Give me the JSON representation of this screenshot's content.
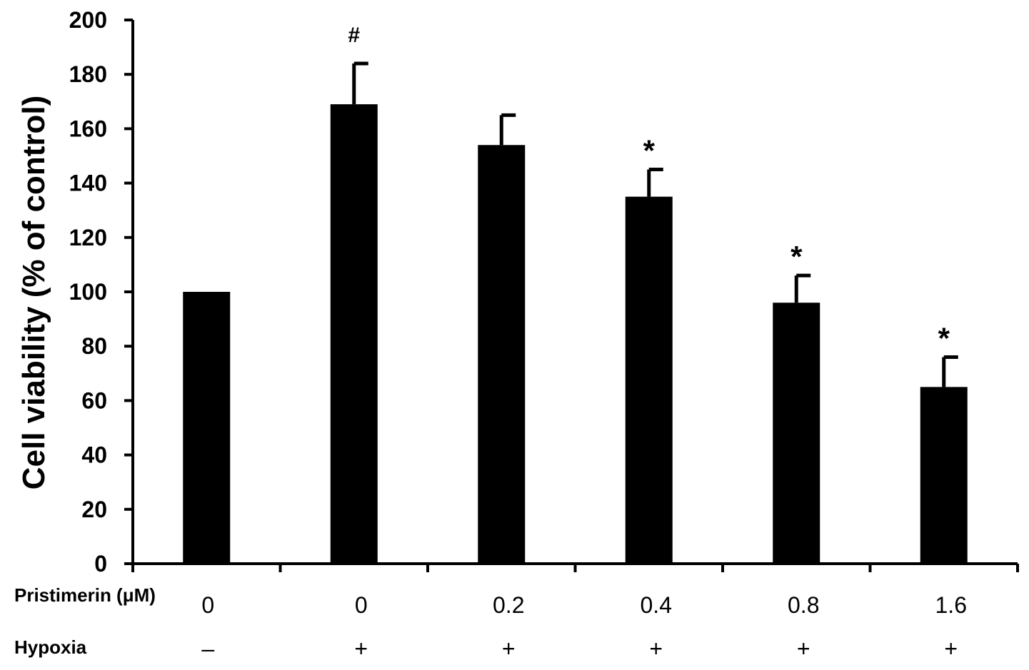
{
  "chart_data": {
    "type": "bar",
    "ylabel": "Cell viability  (% of control)",
    "ylim": [
      0,
      200
    ],
    "yticks": [
      0,
      20,
      40,
      60,
      80,
      100,
      120,
      140,
      160,
      180,
      200
    ],
    "grid": false,
    "bar_color": "#000000",
    "rows": [
      {
        "label": "Pristimerin (μM)",
        "values": [
          "0",
          "0",
          "0.2",
          "0.4",
          "0.8",
          "1.6"
        ]
      },
      {
        "label": "Hypoxia",
        "values": [
          "–",
          "+",
          "+",
          "+",
          "+",
          "+"
        ]
      }
    ],
    "values": [
      100,
      169,
      154,
      135,
      96,
      65
    ],
    "errors": [
      0,
      15,
      11,
      10,
      10,
      11
    ],
    "annotations": [
      "",
      "#",
      "",
      "*",
      "*",
      "*"
    ]
  }
}
